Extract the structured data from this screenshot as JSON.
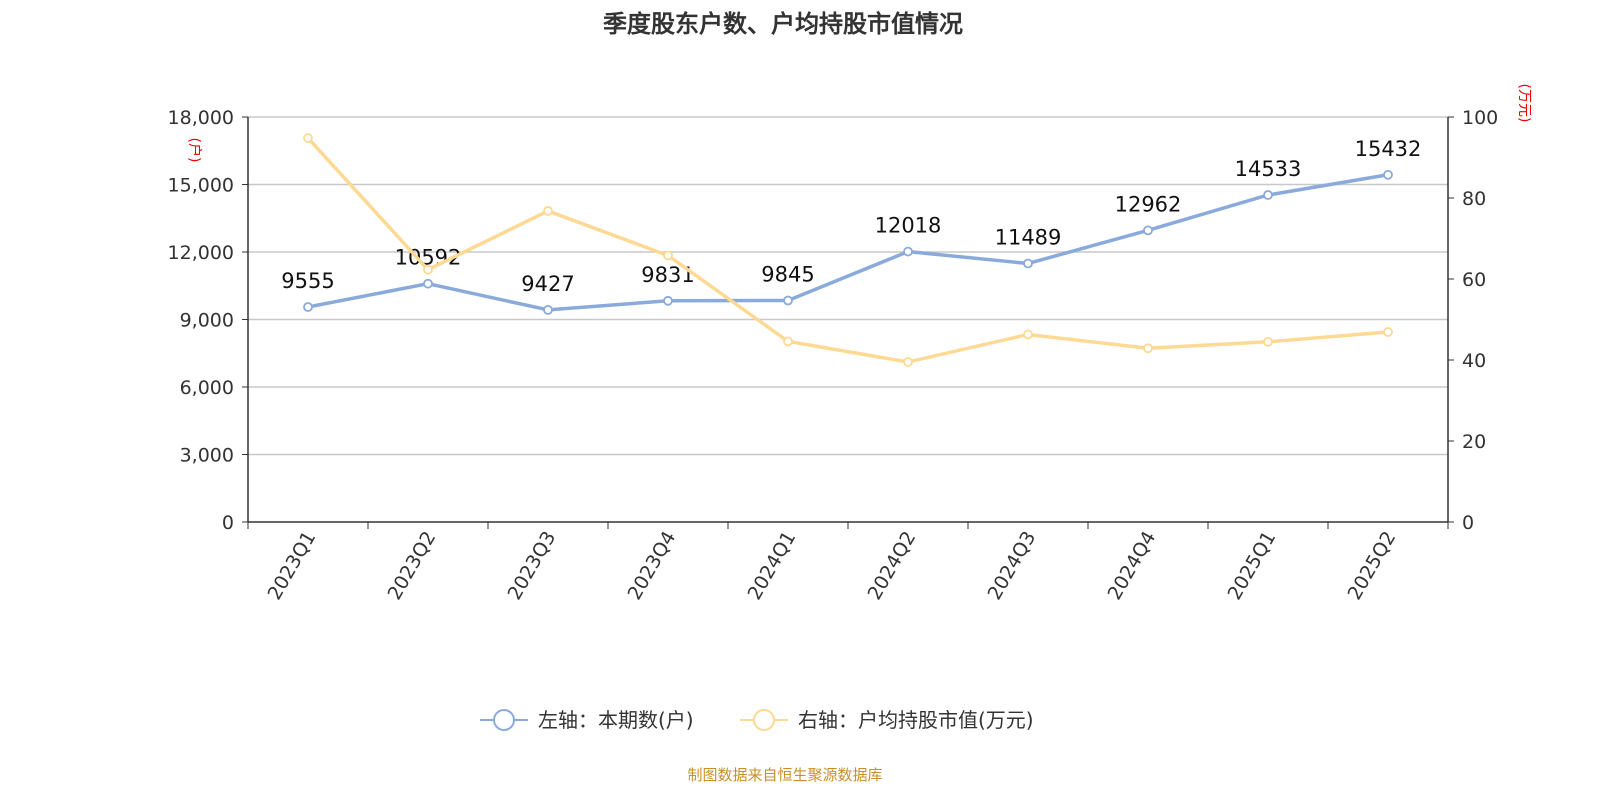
{
  "chart_data": {
    "type": "line",
    "title": "季度股东户数、户均持股市值情况",
    "categories": [
      "2023Q1",
      "2023Q2",
      "2023Q3",
      "2023Q4",
      "2024Q1",
      "2024Q2",
      "2024Q3",
      "2024Q4",
      "2025Q1",
      "2025Q2"
    ],
    "series": [
      {
        "name": "左轴：本期数(户)",
        "axis": "left",
        "color": "#8aaadb",
        "values": [
          9555,
          10592,
          9427,
          9831,
          9845,
          12018,
          11489,
          12962,
          14533,
          15432
        ],
        "labels_shown": true
      },
      {
        "name": "右轴：户均持股市值(万元)",
        "axis": "right",
        "color": "#fdd993",
        "values": [
          94.8,
          62.3,
          76.8,
          65.8,
          44.6,
          39.5,
          46.3,
          42.9,
          44.5,
          46.9
        ],
        "labels_shown": false
      }
    ],
    "left_axis": {
      "unit": "(户)",
      "ylim": [
        0,
        18000
      ],
      "ticks": [
        "0",
        "3,000",
        "6,000",
        "9,000",
        "12,000",
        "15,000",
        "18,000"
      ]
    },
    "right_axis": {
      "unit": "(万元)",
      "ylim": [
        0,
        100
      ],
      "ticks": [
        "0",
        "20",
        "40",
        "60",
        "80",
        "100"
      ]
    },
    "grid": true,
    "legend_position": "bottom"
  },
  "source": "制图数据来自恒生聚源数据库"
}
